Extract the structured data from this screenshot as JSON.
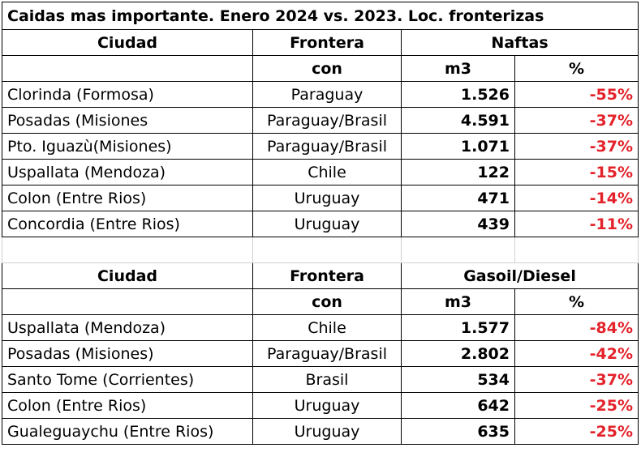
{
  "title": "Caidas mas importante. Enero 2024 vs. 2023. Loc. fronterizas",
  "tables": [
    {
      "header": {
        "city": "Ciudad",
        "border": "Frontera",
        "product": "Naftas",
        "border_sub": "con",
        "volume": "m3",
        "percent": "%"
      },
      "rows": [
        [
          "Clorinda (Formosa)",
          "Paraguay",
          "1.526",
          "-55%"
        ],
        [
          "Posadas (Misiones",
          "Paraguay/Brasil",
          "4.591",
          "-37%"
        ],
        [
          "Pto. Iguazù(Misiones)",
          "Paraguay/Brasil",
          "1.071",
          "-37%"
        ],
        [
          "Uspallata (Mendoza)",
          "Chile",
          "122",
          "-15%"
        ],
        [
          "Colon (Entre Rios)",
          "Uruguay",
          "471",
          "-14%"
        ],
        [
          "Concordia (Entre Rios)",
          "Uruguay",
          "439",
          "-11%"
        ]
      ]
    },
    {
      "header": {
        "city": "Ciudad",
        "border": "Frontera",
        "product": "Gasoil/Diesel",
        "border_sub": "con",
        "volume": "m3",
        "percent": "%"
      },
      "rows": [
        [
          "Uspallata (Mendoza)",
          "Chile",
          "1.577",
          "-84%"
        ],
        [
          "Posadas (Misiones)",
          "Paraguay/Brasil",
          "2.802",
          "-42%"
        ],
        [
          "Santo Tome (Corrientes)",
          "Brasil",
          "534",
          "-37%"
        ],
        [
          "Colon (Entre Rios)",
          "Uruguay",
          "642",
          "-25%"
        ],
        [
          "Gualeguaychu (Entre Rios)",
          "Uruguay",
          "635",
          "-25%"
        ]
      ]
    }
  ]
}
